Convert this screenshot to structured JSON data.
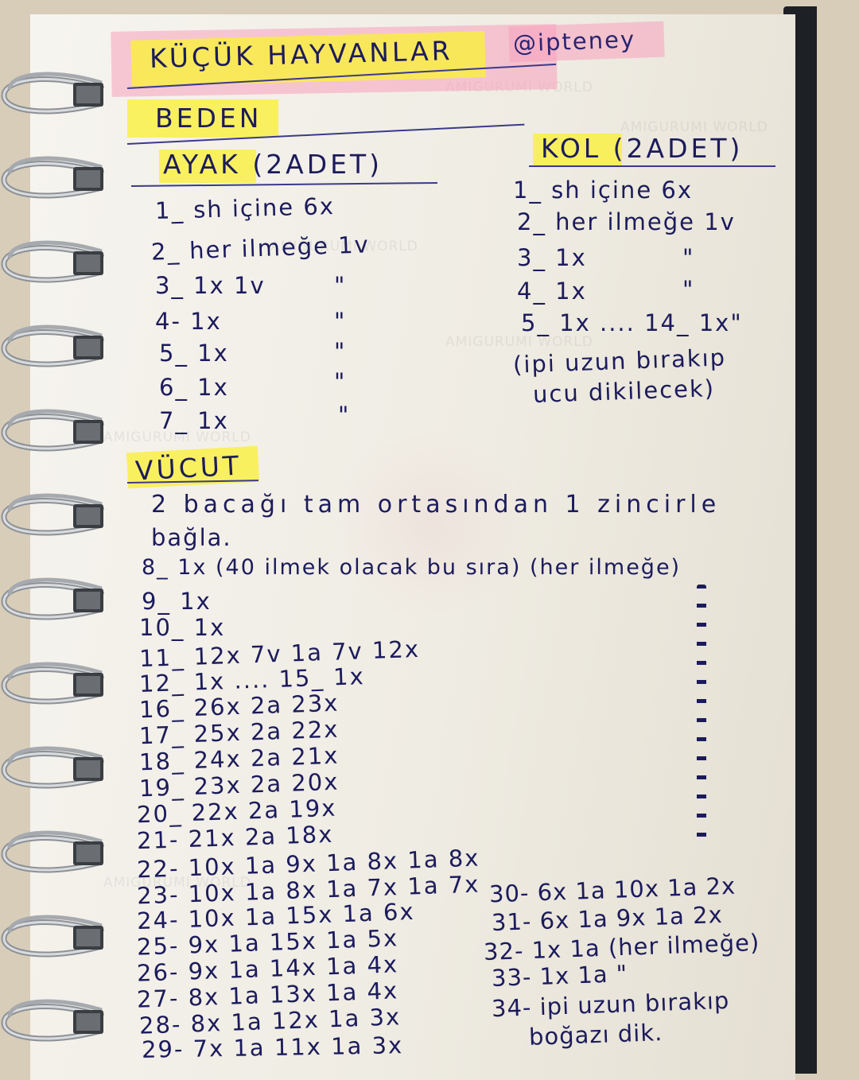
{
  "title": "KÜÇÜK HAYVANLAR",
  "handle": "@ipteney",
  "watermark": "AMIGURUMI WORLD",
  "highlight_colors": {
    "pink": "#f7a0be",
    "yellow": "#faf03c"
  },
  "ink_color": "#1c1b5c",
  "beden": {
    "heading": "BEDEN",
    "ayak": {
      "heading": "AYAK (2ADET)",
      "rows": [
        "1_ sh içine 6x",
        "2_ her ilmeğe 1v",
        "3_ 1x 1v",
        "4- 1x",
        "5_ 1x",
        "6_ 1x",
        "7_ 1x"
      ],
      "ditto": "\""
    },
    "kol": {
      "heading": "KOL (2ADET)",
      "rows": [
        "1_ sh içine 6x",
        "2_ her ilmeğe 1v",
        "3_ 1x",
        "4_ 1x",
        "5_ 1x .... 14_ 1x\"",
        "(ipi uzun bırakıp",
        "ucu dikilecek)"
      ]
    }
  },
  "vucut": {
    "heading": "VÜCUT",
    "intro": [
      "2 bacağı tam ortasından 1 zincirle",
      "bağla."
    ],
    "rows": [
      "8_ 1x (40 ilmek olacak bu sıra) (her ilmeğe)",
      "9_ 1x",
      "10_ 1x",
      "11_ 12x 7v 1a 7v 12x",
      "12_ 1x .... 15_ 1x",
      "16_ 26x 2a 23x",
      "17_ 25x 2a 22x",
      "18_ 24x 2a 21x",
      "19_ 23x 2a 20x",
      "20_ 22x 2a 19x",
      "21- 21x 2a 18x",
      "22- 10x 1a 9x 1a 8x 1a 8x",
      "23- 10x 1a 8x 1a 7x 1a 7x",
      "24- 10x 1a 15x 1a 6x",
      "25- 9x 1a 15x 1a 5x",
      "26- 9x 1a 14x 1a 4x",
      "27- 8x 1a 13x 1a 4x",
      "28- 8x 1a 12x 1a 3x",
      "29- 7x 1a 11x 1a 3x"
    ],
    "rows_right": [
      "30- 6x 1a 10x 1a 2x",
      "31- 6x 1a 9x 1a 2x",
      "32- 1x 1a (her ilmeğe)",
      "33- 1x 1a   \"",
      "34- ipi uzun bırakıp",
      "boğazı dik."
    ]
  }
}
